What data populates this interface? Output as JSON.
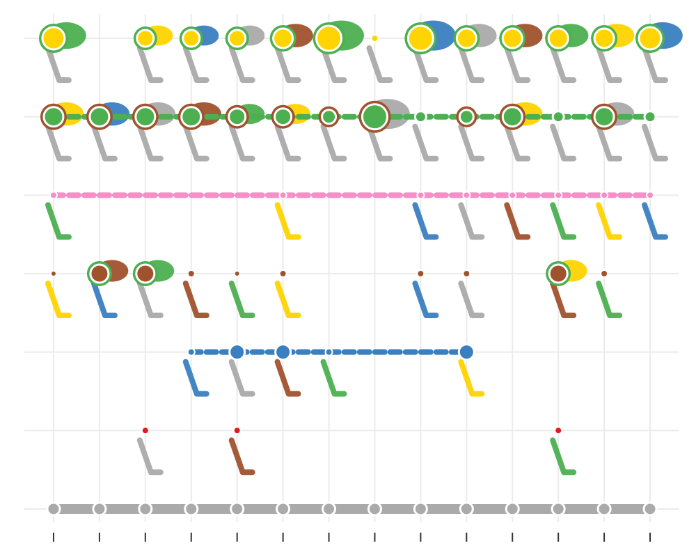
{
  "chart_data": {
    "type": "node-grid",
    "xlim": [
      0.5,
      14.5
    ],
    "xticks": [
      1,
      2,
      3,
      4,
      5,
      6,
      7,
      8,
      9,
      10,
      11,
      12,
      13,
      14
    ],
    "ylim": [
      0.6,
      7.4
    ],
    "yticks": [
      1,
      2,
      3,
      4,
      5,
      6,
      7
    ],
    "grid": true,
    "series": [
      {
        "color": "#ffd400",
        "ring": "#4caf50",
        "connect": false,
        "x": [
          1,
          3,
          4,
          5,
          6,
          7,
          8,
          9,
          10,
          11,
          12,
          13,
          14
        ],
        "values": [
          7,
          7,
          7,
          7,
          7,
          7,
          7,
          7,
          7,
          7,
          7,
          7,
          7
        ],
        "sizes": [
          16,
          12,
          12,
          12,
          14,
          18,
          5,
          18,
          14,
          14,
          14,
          14,
          16
        ]
      },
      {
        "color": "#4caf50",
        "ring": "#a0522d",
        "connect": true,
        "x": [
          1,
          2,
          3,
          4,
          5,
          6,
          7,
          8,
          9,
          10,
          11,
          12,
          13,
          14
        ],
        "values": [
          6,
          6,
          6,
          6,
          6,
          6,
          6,
          6,
          6,
          6,
          6,
          6,
          6,
          6
        ],
        "sizes": [
          14,
          14,
          14,
          14,
          12,
          12,
          10,
          18,
          8,
          10,
          14,
          8,
          14,
          8
        ]
      },
      {
        "color": "#f48fc8",
        "connect": true,
        "x": [
          1,
          6,
          9,
          10,
          11,
          12,
          13,
          14
        ],
        "values": [
          5,
          5,
          5,
          5,
          5,
          5,
          5,
          5
        ],
        "sizes": [
          5,
          5,
          5,
          5,
          5,
          5,
          5,
          5
        ]
      },
      {
        "color": "#a0522d",
        "ring": "#4caf50",
        "connect": false,
        "x": [
          1,
          2,
          3,
          4,
          5,
          6,
          9,
          10,
          12,
          13
        ],
        "values": [
          4,
          4,
          4,
          4,
          4,
          4,
          4,
          4,
          4,
          4
        ],
        "sizes": [
          4,
          13,
          13,
          5,
          4,
          5,
          5,
          5,
          13,
          5
        ]
      },
      {
        "color": "#3a7fc1",
        "connect": true,
        "x": [
          4,
          5,
          6,
          7,
          10
        ],
        "values": [
          3,
          3,
          3,
          3,
          3
        ],
        "sizes": [
          5,
          11,
          11,
          5,
          11
        ]
      },
      {
        "color": "#e41a1c",
        "connect": false,
        "x": [
          3,
          5,
          12
        ],
        "values": [
          2,
          2,
          2
        ],
        "sizes": [
          5,
          5,
          5
        ]
      },
      {
        "color": "#aaaaaa",
        "connect": true,
        "x": [
          1,
          2,
          3,
          4,
          5,
          6,
          7,
          8,
          9,
          10,
          11,
          12,
          13,
          14
        ],
        "values": [
          1,
          1,
          1,
          1,
          1,
          1,
          1,
          1,
          1,
          1,
          1,
          1,
          1,
          1
        ],
        "sizes": [
          9,
          9,
          9,
          9,
          9,
          9,
          9,
          9,
          9,
          9,
          9,
          9,
          9,
          9
        ]
      }
    ]
  }
}
